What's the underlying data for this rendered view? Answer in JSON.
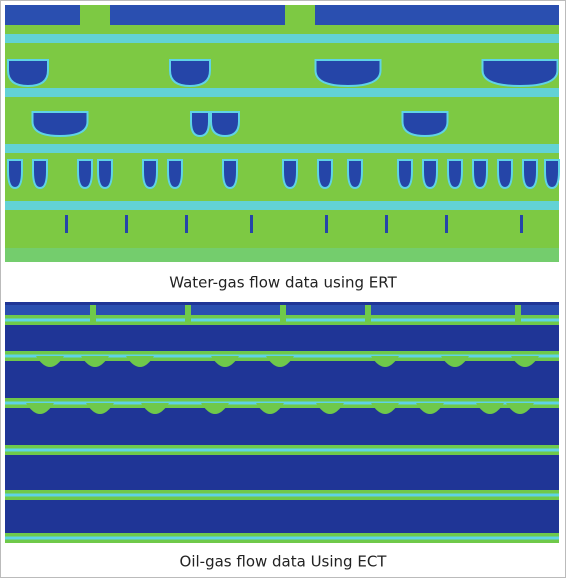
{
  "figure": {
    "panels": [
      {
        "caption": "Water-gas flow data using ERT"
      },
      {
        "caption": "Oil-gas flow data Using ECT"
      }
    ]
  }
}
